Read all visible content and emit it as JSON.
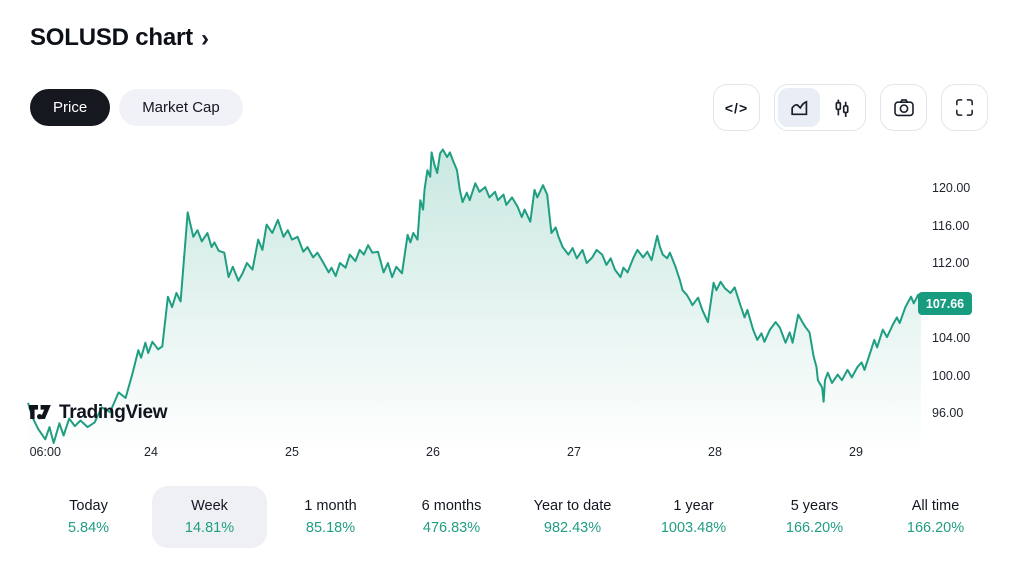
{
  "header": {
    "title": "SOLUSD chart",
    "chevron": "›"
  },
  "view_toggle": {
    "price_label": "Price",
    "market_cap_label": "Market Cap"
  },
  "toolbar": {
    "code_icon_glyph": "</>",
    "buttons": [
      "embed-code",
      "area-style",
      "candles-style",
      "screenshot",
      "fullscreen"
    ],
    "selected_style": "area"
  },
  "branding": {
    "logo_text": "TradingView"
  },
  "colors": {
    "accent": "#1f9e82",
    "badge_bg": "#189c80",
    "text_dark": "#131722",
    "selected_pill_bg": "#15181f",
    "neutral_pill_bg": "#f0f2f7",
    "tab_selected_bg": "#eef0f4",
    "button_border": "#e2e5ec"
  },
  "chart_data": {
    "type": "area",
    "symbol": "SOLUSD",
    "title": "SOLUSD chart",
    "grid": false,
    "legend": "none",
    "last_price": "107.66",
    "last_price_value": 107.66,
    "ylim": [
      91,
      126.5
    ],
    "xlim": [
      23.12,
      29.47
    ],
    "y_axis": {
      "ticks": [
        "120.00",
        "116.00",
        "112.00",
        "104.00",
        "100.00",
        "96.00"
      ],
      "tick_values": [
        120,
        116,
        112,
        104,
        100,
        96
      ]
    },
    "x_axis": {
      "labels": [
        "06:00",
        "24",
        "25",
        "26",
        "27",
        "28",
        "29"
      ],
      "label_days": [
        23.25,
        24,
        25,
        26,
        27,
        28,
        29
      ]
    },
    "series": [
      {
        "name": "SOLUSD price",
        "x": [
          23.13,
          23.16,
          23.2,
          23.25,
          23.28,
          23.31,
          23.35,
          23.38,
          23.42,
          23.46,
          23.5,
          23.55,
          23.6,
          23.65,
          23.71,
          23.77,
          23.82,
          23.87,
          23.91,
          23.93,
          23.96,
          23.98,
          24.01,
          24.05,
          24.08,
          24.12,
          24.15,
          24.18,
          24.21,
          24.26,
          24.3,
          24.33,
          24.36,
          24.4,
          24.43,
          24.45,
          24.48,
          24.52,
          24.55,
          24.58,
          24.62,
          24.65,
          24.68,
          24.72,
          24.76,
          24.79,
          24.82,
          24.86,
          24.9,
          24.94,
          24.97,
          25.0,
          25.04,
          25.08,
          25.11,
          25.15,
          25.18,
          25.22,
          25.26,
          25.28,
          25.31,
          25.34,
          25.38,
          25.41,
          25.45,
          25.48,
          25.51,
          25.54,
          25.57,
          25.61,
          25.65,
          25.68,
          25.71,
          25.74,
          25.78,
          25.82,
          25.84,
          25.86,
          25.89,
          25.91,
          25.93,
          25.94,
          25.96,
          25.98,
          25.99,
          26.01,
          26.03,
          26.05,
          26.07,
          26.1,
          26.12,
          26.14,
          26.17,
          26.19,
          26.21,
          26.24,
          26.26,
          26.3,
          26.33,
          26.37,
          26.4,
          26.44,
          26.46,
          26.5,
          26.52,
          26.56,
          26.6,
          26.63,
          26.65,
          26.69,
          26.72,
          26.74,
          26.78,
          26.81,
          26.84,
          26.87,
          26.89,
          26.92,
          26.96,
          26.99,
          27.02,
          27.06,
          27.09,
          27.13,
          27.16,
          27.2,
          27.23,
          27.26,
          27.29,
          27.33,
          27.35,
          27.38,
          27.42,
          27.45,
          27.49,
          27.52,
          27.55,
          27.59,
          27.61,
          27.63,
          27.66,
          27.68,
          27.72,
          27.75,
          27.77,
          27.8,
          27.82,
          27.84,
          27.88,
          27.91,
          27.95,
          27.99,
          28.01,
          28.04,
          28.07,
          28.11,
          28.14,
          28.18,
          28.21,
          28.23,
          28.27,
          28.3,
          28.33,
          28.35,
          28.39,
          28.43,
          28.46,
          28.5,
          28.53,
          28.55,
          28.59,
          28.62,
          28.64,
          28.67,
          28.7,
          28.72,
          28.73,
          28.76,
          28.77,
          28.78,
          28.8,
          28.83,
          28.87,
          28.9,
          28.94,
          28.97,
          29.01,
          29.04,
          29.06,
          29.1,
          29.13,
          29.15,
          29.19,
          29.22,
          29.26,
          29.29,
          29.31,
          29.35,
          29.39,
          29.41,
          29.44,
          29.46
        ],
        "y": [
          97.0,
          95.5,
          94.3,
          93.2,
          94.5,
          92.8,
          94.9,
          93.6,
          95.4,
          94.6,
          95.2,
          94.5,
          95.0,
          96.6,
          96.1,
          98.2,
          97.6,
          100.3,
          102.7,
          101.9,
          103.5,
          102.4,
          103.6,
          102.8,
          103.1,
          108.4,
          107.3,
          108.8,
          107.9,
          117.4,
          114.8,
          115.5,
          114.3,
          115.2,
          113.7,
          114.2,
          113.3,
          113.1,
          110.5,
          111.6,
          110.1,
          110.9,
          112.0,
          111.3,
          114.5,
          113.4,
          116.1,
          115.2,
          116.6,
          114.8,
          115.5,
          114.5,
          114.8,
          113.2,
          113.7,
          112.6,
          113.1,
          112.1,
          111.0,
          111.5,
          110.6,
          112.0,
          111.5,
          112.9,
          112.2,
          113.4,
          112.9,
          113.9,
          113.1,
          113.2,
          111.0,
          112.0,
          110.5,
          111.6,
          110.9,
          115.0,
          114.2,
          115.2,
          114.5,
          118.7,
          117.7,
          119.8,
          121.9,
          121.2,
          123.8,
          122.5,
          121.6,
          123.7,
          124.1,
          123.3,
          123.8,
          123.0,
          121.9,
          119.8,
          118.5,
          119.5,
          118.7,
          120.5,
          119.6,
          120.1,
          119.0,
          119.6,
          118.7,
          119.3,
          118.2,
          119.0,
          118.0,
          116.9,
          117.7,
          116.4,
          119.8,
          119.0,
          120.3,
          119.3,
          115.2,
          115.8,
          114.8,
          113.7,
          112.9,
          113.6,
          112.5,
          113.4,
          112.0,
          112.6,
          113.4,
          112.9,
          111.8,
          112.5,
          111.3,
          110.5,
          111.5,
          111.0,
          112.5,
          113.4,
          112.6,
          113.2,
          112.3,
          114.9,
          113.7,
          112.9,
          112.5,
          113.1,
          111.6,
          110.2,
          109.1,
          108.6,
          108.1,
          107.5,
          108.3,
          107.0,
          105.7,
          109.9,
          109.1,
          110.0,
          109.3,
          108.8,
          109.4,
          107.5,
          106.2,
          107.0,
          104.9,
          103.8,
          104.5,
          103.6,
          104.9,
          105.7,
          105.1,
          103.5,
          104.6,
          103.5,
          106.5,
          105.7,
          105.2,
          104.6,
          102.0,
          100.9,
          99.5,
          98.7,
          97.2,
          99.5,
          100.3,
          99.2,
          100.1,
          99.5,
          100.6,
          99.8,
          100.9,
          101.4,
          100.6,
          102.4,
          103.8,
          103.0,
          104.9,
          104.1,
          105.4,
          106.2,
          105.6,
          107.3,
          108.4,
          107.7,
          108.6,
          107.66
        ]
      }
    ]
  },
  "ranges": [
    {
      "label": "Today",
      "change": "5.84%",
      "selected": false
    },
    {
      "label": "Week",
      "change": "14.81%",
      "selected": true
    },
    {
      "label": "1 month",
      "change": "85.18%",
      "selected": false
    },
    {
      "label": "6 months",
      "change": "476.83%",
      "selected": false
    },
    {
      "label": "Year to date",
      "change": "982.43%",
      "selected": false
    },
    {
      "label": "1 year",
      "change": "1003.48%",
      "selected": false
    },
    {
      "label": "5 years",
      "change": "166.20%",
      "selected": false
    },
    {
      "label": "All time",
      "change": "166.20%",
      "selected": false
    }
  ]
}
